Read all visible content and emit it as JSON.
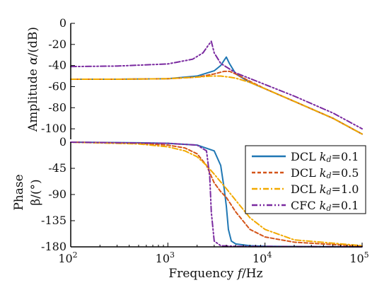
{
  "chart_data": [
    {
      "id": "amplitude",
      "type": "line",
      "xscale": "log",
      "xlim": [
        100,
        100000
      ],
      "ylim": [
        -110,
        0
      ],
      "yticks": [
        0,
        -20,
        -40,
        -60,
        -80,
        -100
      ],
      "ytick_labels": [
        "0",
        "-20",
        "-40",
        "-60",
        "-80",
        "-100"
      ],
      "ylabel_text": "Amplitude ",
      "ylabel_var": "α",
      "ylabel_unit": "/(dB)",
      "series": [
        {
          "name": "DCL kd=0.1",
          "color": "#1f77b4",
          "dash": "solid",
          "x": [
            100,
            300,
            1000,
            2000,
            3000,
            3500,
            3800,
            4000,
            4300,
            5000,
            7000,
            10000,
            20000,
            50000,
            100000
          ],
          "y": [
            -53,
            -53,
            -52.5,
            -50,
            -45,
            -40,
            -35,
            -32,
            -38,
            -48,
            -56,
            -62,
            -74,
            -90,
            -105
          ]
        },
        {
          "name": "DCL kd=0.5",
          "color": "#d4551a",
          "dash": "dashed",
          "x": [
            100,
            300,
            1000,
            2000,
            3000,
            3800,
            4300,
            5000,
            7000,
            10000,
            20000,
            50000,
            100000
          ],
          "y": [
            -53,
            -53,
            -52.5,
            -51,
            -48,
            -45.5,
            -45.5,
            -48,
            -55,
            -62,
            -74,
            -90,
            -105
          ]
        },
        {
          "name": "DCL kd=1.0",
          "color": "#f2a900",
          "dash": "dashdot",
          "x": [
            100,
            300,
            1000,
            2000,
            2800,
            3500,
            4300,
            5000,
            7000,
            10000,
            20000,
            50000,
            100000
          ],
          "y": [
            -53,
            -53,
            -52.5,
            -51,
            -50,
            -50,
            -51,
            -52,
            -56,
            -62,
            -74,
            -90,
            -105
          ]
        },
        {
          "name": "CFC kd=0.1",
          "color": "#7a2aa0",
          "dash": "dashdotdot",
          "x": [
            100,
            300,
            1000,
            1800,
            2300,
            2600,
            2800,
            3000,
            3500,
            5000,
            10000,
            20000,
            50000,
            100000
          ],
          "y": [
            -41,
            -40.5,
            -38.5,
            -34,
            -28,
            -21,
            -17,
            -28,
            -38,
            -47,
            -58,
            -69,
            -85,
            -100
          ]
        }
      ]
    },
    {
      "id": "phase",
      "type": "line",
      "xscale": "log",
      "xlim": [
        100,
        100000
      ],
      "ylim": [
        -180,
        0
      ],
      "xticks": [
        100,
        1000,
        10000,
        100000
      ],
      "xtick_bases": [
        "10",
        "10",
        "10",
        "10"
      ],
      "xtick_exps": [
        "2",
        "3",
        "4",
        "5"
      ],
      "yticks": [
        0,
        -45,
        -90,
        -135,
        -180
      ],
      "ytick_labels": [
        "0",
        "-45",
        "-90",
        "-135",
        "-180"
      ],
      "ylabel_line1": "Phase",
      "ylabel_line2": "β/(°)",
      "xlabel_text": "Frequency ",
      "xlabel_var": "f",
      "xlabel_unit": "/Hz",
      "series": [
        {
          "name": "DCL kd=0.1",
          "color": "#1f77b4",
          "dash": "solid",
          "x": [
            100,
            500,
            1000,
            2000,
            3000,
            3500,
            3800,
            4000,
            4200,
            4500,
            5000,
            7000,
            10000,
            100000
          ],
          "y": [
            0,
            -1,
            -2,
            -5,
            -15,
            -40,
            -80,
            -110,
            -150,
            -170,
            -175,
            -178,
            -179,
            -180
          ]
        },
        {
          "name": "DCL kd=0.5",
          "color": "#d4551a",
          "dash": "dashed",
          "x": [
            100,
            500,
            1000,
            1500,
            2000,
            2500,
            3000,
            3500,
            4000,
            5000,
            7000,
            10000,
            20000,
            100000
          ],
          "y": [
            0,
            -2,
            -5,
            -10,
            -20,
            -40,
            -70,
            -85,
            -95,
            -120,
            -150,
            -163,
            -172,
            -179
          ]
        },
        {
          "name": "DCL kd=1.0",
          "color": "#f2a900",
          "dash": "dashdot",
          "x": [
            100,
            500,
            1000,
            1500,
            2000,
            2500,
            3000,
            4000,
            5000,
            7000,
            10000,
            20000,
            100000
          ],
          "y": [
            0,
            -3,
            -8,
            -15,
            -25,
            -40,
            -55,
            -80,
            -100,
            -130,
            -150,
            -168,
            -178
          ]
        },
        {
          "name": "CFC kd=0.1",
          "color": "#7a2aa0",
          "dash": "dashdotdot",
          "x": [
            100,
            1000,
            2000,
            2500,
            2700,
            2800,
            3000,
            3500,
            5000,
            100000
          ],
          "y": [
            0,
            -2,
            -5,
            -15,
            -60,
            -120,
            -170,
            -178,
            -179,
            -180
          ]
        }
      ]
    }
  ],
  "legend": {
    "placement": "top-right of phase panel",
    "items": [
      {
        "prefix": "DCL ",
        "k": "k",
        "sub": "d",
        "suffix": "=0.1",
        "color": "#1f77b4",
        "dash": "solid"
      },
      {
        "prefix": "DCL ",
        "k": "k",
        "sub": "d",
        "suffix": "=0.5",
        "color": "#d4551a",
        "dash": "dashed"
      },
      {
        "prefix": "DCL ",
        "k": "k",
        "sub": "d",
        "suffix": "=1.0",
        "color": "#f2a900",
        "dash": "dashdot"
      },
      {
        "prefix": "CFC ",
        "k": "k",
        "sub": "d",
        "suffix": "=0.1",
        "color": "#7a2aa0",
        "dash": "dashdotdot"
      }
    ]
  }
}
